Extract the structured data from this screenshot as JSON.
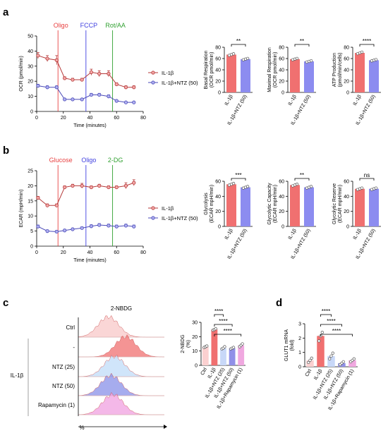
{
  "panel_letters": [
    "a",
    "b",
    "c",
    "d"
  ],
  "colors": {
    "il1b": "#f07070",
    "il1b_dark": "#b53a3a",
    "ntz": "#8c8cf0",
    "ntz_dark": "#4a4ab8",
    "oligo_line": "#e84040",
    "fccp_line": "#4040e0",
    "rot_line": "#30a030",
    "ctrl_bar": "#fbd0d0",
    "ntz25_bar": "#c8d8f8",
    "ntz50_bar": "#9090e8",
    "rapa_bar": "#f0a8e0",
    "ctrl_hist": "#f8c8c8",
    "il_hist": "#f07070",
    "ntz25_hist": "#c0dcf8",
    "ntz50_hist": "#8890e8",
    "rapa_hist": "#f0a0e0"
  },
  "chart_data": [
    {
      "id": "a-ocr",
      "type": "line",
      "ylabel": "OCR (pmol/min)",
      "xlabel": "Time (minutes)",
      "xlim": [
        0,
        80
      ],
      "ylim": [
        0,
        50
      ],
      "xticks": [
        0,
        20,
        40,
        60,
        80
      ],
      "yticks": [
        0,
        10,
        20,
        30,
        40,
        50
      ],
      "injections": [
        {
          "label": "Oligo",
          "x": 16,
          "color": "#e84040"
        },
        {
          "label": "FCCP",
          "x": 37,
          "color": "#4040e0"
        },
        {
          "label": "Rot/AA",
          "x": 57,
          "color": "#30a030"
        }
      ],
      "series": [
        {
          "name": "IL-1β",
          "x": [
            1,
            8,
            15,
            21,
            27,
            34,
            41,
            47,
            54,
            60,
            67,
            73
          ],
          "y": [
            37,
            35,
            34,
            22,
            21,
            21,
            26,
            25,
            25,
            18,
            16,
            16
          ],
          "err": [
            2,
            2,
            3,
            1,
            1,
            1,
            2,
            2,
            2,
            1,
            1,
            1
          ]
        },
        {
          "name": "IL-1β+NTZ (50)",
          "x": [
            1,
            8,
            15,
            21,
            27,
            34,
            41,
            47,
            54,
            60,
            67,
            73
          ],
          "y": [
            17,
            16,
            16,
            8,
            8,
            8,
            11,
            11,
            10,
            7,
            6,
            6
          ],
          "err": [
            1,
            1,
            1,
            0.5,
            0.5,
            0.5,
            1,
            1,
            1,
            0.5,
            0.5,
            0.5
          ]
        }
      ]
    },
    {
      "id": "a-basal",
      "type": "bar",
      "ylabel": "Basal Respiration (OCR pmol/min)",
      "categories": [
        "IL-1β",
        "IL-1β+NTZ (50)"
      ],
      "values": [
        67,
        59
      ],
      "ylim": [
        0,
        80
      ],
      "yticks": [
        0,
        20,
        40,
        60,
        80
      ],
      "significance": "**"
    },
    {
      "id": "a-maximal",
      "type": "bar",
      "ylabel": "Maximal Respiration (OCR pmol/min)",
      "categories": [
        "IL-1β",
        "IL-1β+NTZ (50)"
      ],
      "values": [
        59,
        55
      ],
      "ylim": [
        0,
        80
      ],
      "yticks": [
        0,
        20,
        40,
        60,
        80
      ],
      "significance": "**"
    },
    {
      "id": "a-atp",
      "type": "bar",
      "ylabel": "ATP Production (pmol/min/cells)",
      "categories": [
        "IL-1β",
        "IL-1β+NTZ (50)"
      ],
      "values": [
        70,
        57
      ],
      "ylim": [
        0,
        80
      ],
      "yticks": [
        0,
        20,
        40,
        60,
        80
      ],
      "significance": "****"
    },
    {
      "id": "b-ecar",
      "type": "line",
      "ylabel": "ECAR (mpH/min)",
      "xlabel": "Time (minutes)",
      "xlim": [
        0,
        80
      ],
      "ylim": [
        0,
        25
      ],
      "xticks": [
        0,
        20,
        40,
        60,
        80
      ],
      "yticks": [
        0,
        5,
        10,
        15,
        20,
        25
      ],
      "injections": [
        {
          "label": "Glucose",
          "x": 16,
          "color": "#e84040"
        },
        {
          "label": "Oligo",
          "x": 37,
          "color": "#4040e0"
        },
        {
          "label": "2-DG",
          "x": 57,
          "color": "#30a030"
        }
      ],
      "series": [
        {
          "name": "IL-1β",
          "x": [
            1,
            8,
            15,
            21,
            27,
            34,
            41,
            47,
            54,
            60,
            67,
            73
          ],
          "y": [
            16,
            13.5,
            13.5,
            19.5,
            20,
            20,
            19.5,
            20,
            19.5,
            19.5,
            20,
            21
          ],
          "err": [
            0.5,
            0.5,
            0.5,
            0.5,
            0.5,
            0.8,
            0.5,
            0.5,
            0.5,
            0.5,
            1,
            1
          ]
        },
        {
          "name": "IL-1β+NTZ (50)",
          "x": [
            1,
            8,
            15,
            21,
            27,
            34,
            41,
            47,
            54,
            60,
            67,
            73
          ],
          "y": [
            6.5,
            5,
            4.8,
            5.2,
            5.6,
            6,
            6.6,
            7,
            6.8,
            6.5,
            6.8,
            6.5
          ],
          "err": [
            0.5,
            0.4,
            0.4,
            0.4,
            0.4,
            0.4,
            0.5,
            0.5,
            0.5,
            0.5,
            0.5,
            0.5
          ]
        }
      ]
    },
    {
      "id": "b-glycolysis",
      "type": "bar",
      "ylabel": "Glycolysis (ECAR mpH/min)",
      "categories": [
        "IL-1β",
        "IL-1β+NTZ (50)"
      ],
      "values": [
        56,
        52
      ],
      "ylim": [
        0,
        60
      ],
      "yticks": [
        0,
        20,
        40,
        60
      ],
      "significance": "***"
    },
    {
      "id": "b-capacity",
      "type": "bar",
      "ylabel": "Glycolytic Capacity (ECAR mpH/min)",
      "categories": [
        "IL-1β",
        "IL-1β+NTZ (50)"
      ],
      "values": [
        55,
        52
      ],
      "ylim": [
        0,
        60
      ],
      "yticks": [
        0,
        20,
        40,
        60
      ],
      "significance": "**"
    },
    {
      "id": "b-reserve",
      "type": "bar",
      "ylabel": "Glycolytic Reserve (ECAR mpH/min)",
      "categories": [
        "IL-1β",
        "IL-1β+NTZ (50)"
      ],
      "values": [
        50,
        50
      ],
      "ylim": [
        0,
        60
      ],
      "yticks": [
        0,
        20,
        40,
        60
      ],
      "significance": "ns"
    },
    {
      "id": "c-hist",
      "type": "area",
      "title": "2-NBDG",
      "xlabel": "%",
      "group_label": "IL-1β",
      "rows": [
        {
          "label": "Ctrl",
          "peak": 0.35,
          "width": 0.17
        },
        {
          "label": "-",
          "peak": 0.55,
          "width": 0.17
        },
        {
          "label": "NTZ (25)",
          "peak": 0.42,
          "width": 0.17
        },
        {
          "label": "NTZ (50)",
          "peak": 0.38,
          "width": 0.17
        },
        {
          "label": "Rapamycin (1)",
          "peak": 0.4,
          "width": 0.17
        }
      ]
    },
    {
      "id": "c-bar",
      "type": "bar",
      "ylabel": "2-NBDG (%)",
      "categories": [
        "Ctrl",
        "IL-1β",
        "IL-1β+NTZ (25)",
        "IL-1β+NTZ (50)",
        "IL-1β+Rapamycin (1)"
      ],
      "values": [
        13,
        25,
        12,
        12,
        14
      ],
      "ylim": [
        0,
        30
      ],
      "yticks": [
        0,
        10,
        20,
        30
      ],
      "significance": [
        "****",
        "****",
        "****"
      ]
    },
    {
      "id": "d-bar",
      "type": "bar",
      "ylabel": "GLUT1 mRNA (fold)",
      "categories": [
        "Ctrl",
        "IL-1β",
        "IL-1β+NTZ (25)",
        "IL-1β+NTZ (50)",
        "IL-1β+Rapamycin (1)"
      ],
      "values": [
        0.45,
        2.15,
        0.75,
        0.25,
        0.45
      ],
      "ylim": [
        0,
        3
      ],
      "yticks": [
        0,
        1,
        2,
        3
      ],
      "significance": [
        "****",
        "****",
        "****"
      ]
    }
  ]
}
